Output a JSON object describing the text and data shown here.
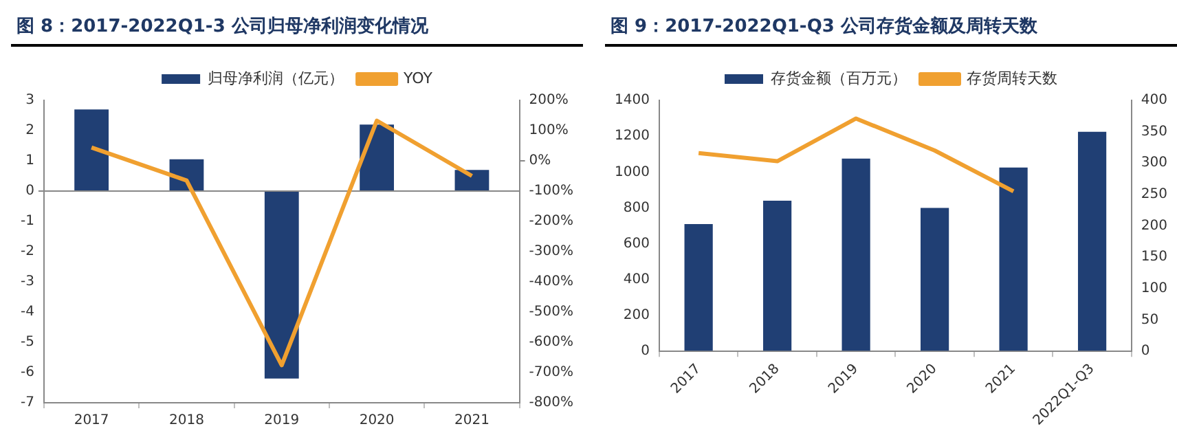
{
  "chart_data": [
    {
      "type": "bar",
      "title": "图 8：2017-2022Q1-3 公司归母净利润变化情况",
      "categories": [
        "2017",
        "2018",
        "2019",
        "2020",
        "2021"
      ],
      "series": [
        {
          "name": "归母净利润（亿元）",
          "color": "#203f74",
          "values": [
            2.7,
            1.05,
            -6.2,
            2.2,
            0.7
          ]
        },
        {
          "name": "YOY",
          "type": "line",
          "axis": "y2",
          "color": "#f0a030",
          "values": [
            44,
            -65,
            -676,
            133,
            -50
          ]
        }
      ],
      "ylim": [
        -7,
        3
      ],
      "yticks": [
        -7,
        -6,
        -5,
        -4,
        -3,
        -2,
        -1,
        0,
        1,
        2,
        3
      ],
      "y2lim": [
        -800,
        200
      ],
      "y2ticks": [
        {
          "value": -800,
          "label": "-800%"
        },
        {
          "value": -700,
          "label": "-700%"
        },
        {
          "value": -600,
          "label": "-600%"
        },
        {
          "value": -500,
          "label": "-500%"
        },
        {
          "value": -400,
          "label": "-400%"
        },
        {
          "value": -300,
          "label": "-300%"
        },
        {
          "value": -200,
          "label": "-200%"
        },
        {
          "value": -100,
          "label": "-100%"
        },
        {
          "value": 0,
          "label": "0%"
        },
        {
          "value": 100,
          "label": "100%"
        },
        {
          "value": 200,
          "label": "200%"
        }
      ],
      "legend": "top"
    },
    {
      "type": "bar",
      "title": "图 9：2017-2022Q1-Q3 公司存货金额及周转天数",
      "categories": [
        "2017",
        "2018",
        "2019",
        "2020",
        "2021",
        "2022Q1-Q3"
      ],
      "series": [
        {
          "name": "存货金额（百万元）",
          "color": "#203f74",
          "values": [
            710,
            840,
            1075,
            800,
            1025,
            1225
          ]
        },
        {
          "name": "存货周转天数",
          "type": "line",
          "axis": "y2",
          "color": "#f0a030",
          "values": [
            316,
            303,
            371,
            320,
            255,
            null
          ]
        }
      ],
      "ylim": [
        0,
        1400
      ],
      "yticks": [
        0,
        200,
        400,
        600,
        800,
        1000,
        1200,
        1400
      ],
      "y2lim": [
        0,
        400
      ],
      "y2ticks": [
        0,
        50,
        100,
        150,
        200,
        250,
        300,
        350,
        400
      ],
      "legend": "top"
    }
  ]
}
